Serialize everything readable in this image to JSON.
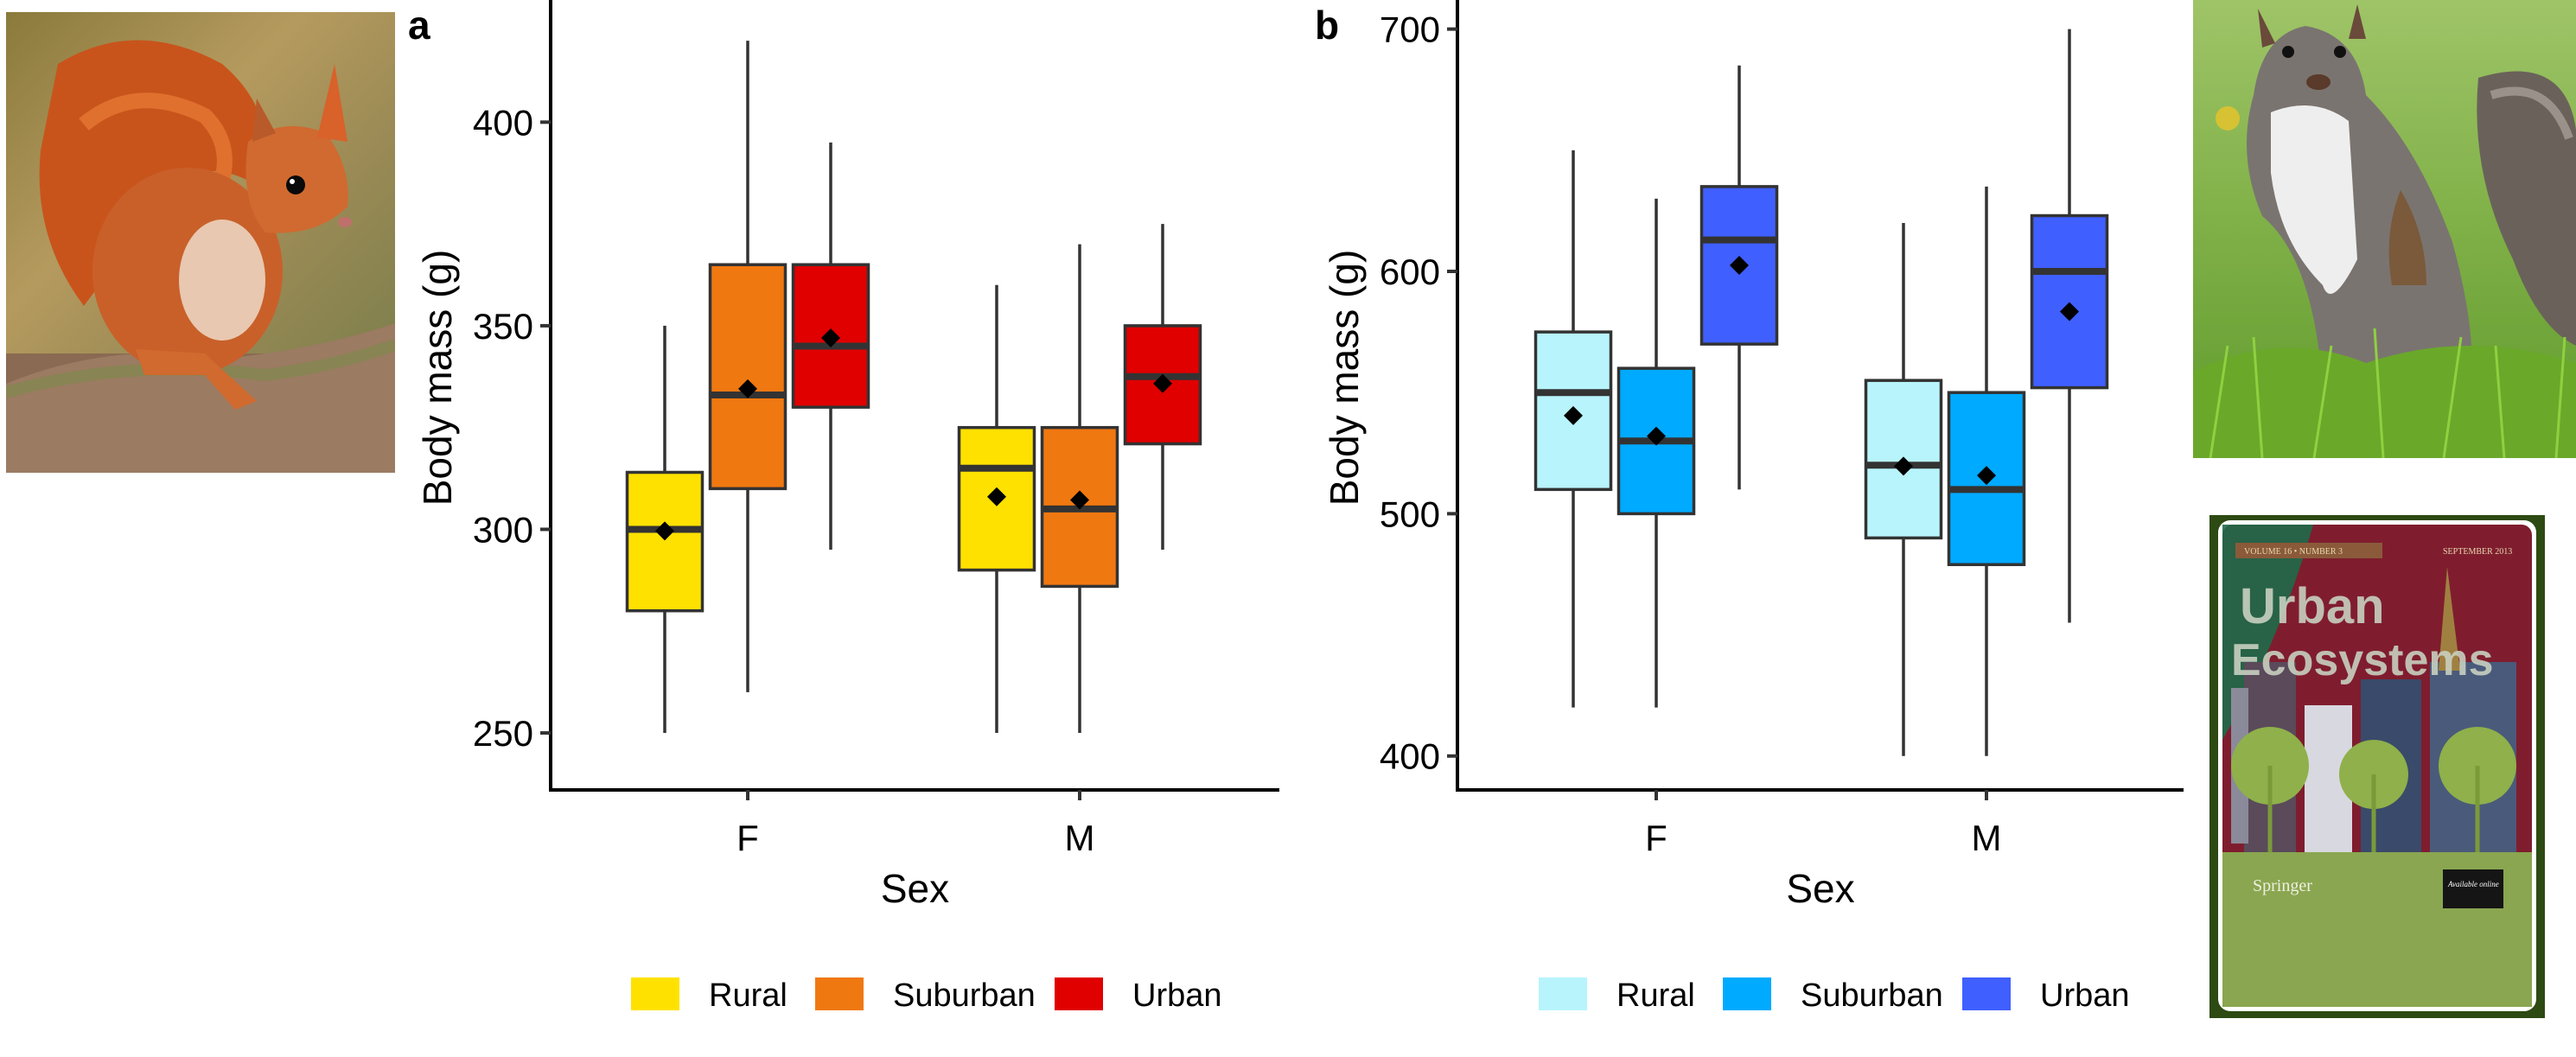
{
  "figure": {
    "photos": {
      "red_squirrel": "Red squirrel on mossy log",
      "gray_squirrel": "Gray squirrel standing in grass",
      "journal_cover": {
        "volume_line": "VOLUME 16 • NUMBER 3",
        "date_line": "SEPTEMBER 2013",
        "title_line1": "Urban",
        "title_line2": "Ecosystems",
        "publisher": "Springer",
        "badge": "Available online"
      }
    }
  },
  "chart_data": [
    {
      "type": "box",
      "panel_label": "a",
      "title": "",
      "xlabel": "Sex",
      "ylabel": "Body mass (g)",
      "categories": [
        "F",
        "M"
      ],
      "ylim": [
        236,
        430
      ],
      "yticks": [
        250,
        300,
        350,
        400
      ],
      "grid": false,
      "legend_position": "bottom",
      "series": [
        {
          "name": "Rural",
          "color": "#FFE100",
          "boxes": [
            {
              "min": 250,
              "q1": 280,
              "median": 300,
              "q3": 314,
              "max": 350,
              "mean": 299.6
            },
            {
              "min": 250,
              "q1": 290,
              "median": 315,
              "q3": 325,
              "max": 360,
              "mean": 308
            }
          ]
        },
        {
          "name": "Suburban",
          "color": "#F07811",
          "boxes": [
            {
              "min": 260,
              "q1": 310,
              "median": 333,
              "q3": 365,
              "max": 420,
              "mean": 334.5
            },
            {
              "min": 250,
              "q1": 286,
              "median": 305,
              "q3": 325,
              "max": 370,
              "mean": 307.2
            }
          ]
        },
        {
          "name": "Urban",
          "color": "#E00000",
          "boxes": [
            {
              "min": 295,
              "q1": 330,
              "median": 345,
              "q3": 365,
              "max": 395,
              "mean": 347
            },
            {
              "min": 295,
              "q1": 321,
              "median": 337.5,
              "q3": 350,
              "max": 375,
              "mean": 335.8
            }
          ]
        }
      ]
    },
    {
      "type": "box",
      "panel_label": "b",
      "title": "",
      "xlabel": "Sex",
      "ylabel": "Body mass (g)",
      "categories": [
        "F",
        "M"
      ],
      "ylim": [
        386,
        712
      ],
      "yticks": [
        400,
        500,
        600,
        700
      ],
      "grid": false,
      "legend_position": "bottom",
      "series": [
        {
          "name": "Rural",
          "color": "#B8F4FC",
          "boxes": [
            {
              "min": 420,
              "q1": 510,
              "median": 550,
              "q3": 575,
              "max": 650,
              "mean": 540.5
            },
            {
              "min": 400,
              "q1": 490,
              "median": 520,
              "q3": 555,
              "max": 620,
              "mean": 519.6
            }
          ]
        },
        {
          "name": "Suburban",
          "color": "#00AAFF",
          "boxes": [
            {
              "min": 420,
              "q1": 500,
              "median": 530,
              "q3": 560,
              "max": 630,
              "mean": 532
            },
            {
              "min": 400,
              "q1": 479,
              "median": 510,
              "q3": 550,
              "max": 635,
              "mean": 515.8
            }
          ]
        },
        {
          "name": "Urban",
          "color": "#3F5FFF",
          "boxes": [
            {
              "min": 510,
              "q1": 570,
              "median": 613,
              "q3": 635,
              "max": 685,
              "mean": 602.5
            },
            {
              "min": 455,
              "q1": 552,
              "median": 600,
              "q3": 623,
              "max": 700,
              "mean": 583.4
            }
          ]
        }
      ]
    }
  ]
}
